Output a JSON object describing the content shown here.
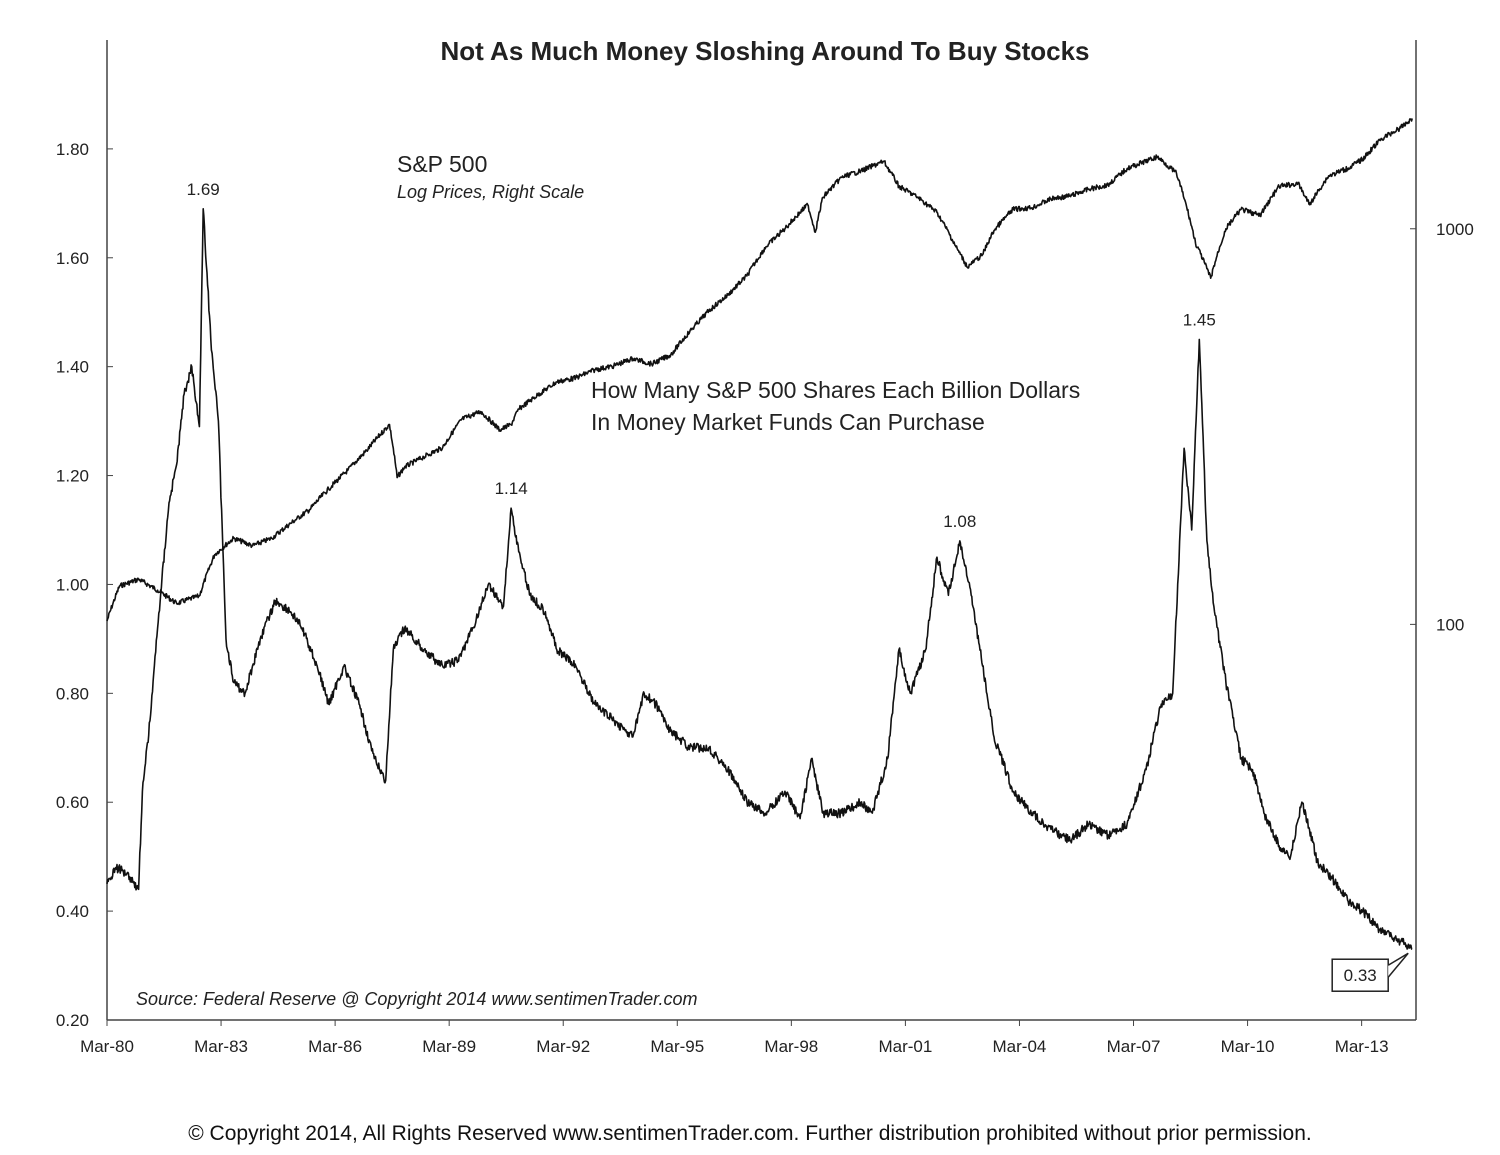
{
  "chart_data": {
    "type": "line",
    "title": "Not As Much Money Sloshing Around To Buy Stocks",
    "source_note": "Source:  Federal Reserve   @ Copyright 2014   www.sentimenTrader.com",
    "x_ticks": [
      "Mar-80",
      "Mar-83",
      "Mar-86",
      "Mar-89",
      "Mar-92",
      "Mar-95",
      "Mar-98",
      "Mar-01",
      "Mar-04",
      "Mar-07",
      "Mar-10",
      "Mar-13"
    ],
    "y_left": {
      "ylim": [
        0.2,
        2.0
      ],
      "ticks": [
        "0.20",
        "0.40",
        "0.60",
        "0.80",
        "1.00",
        "1.20",
        "1.40",
        "1.60",
        "1.80"
      ]
    },
    "y_right": {
      "scale": "log",
      "ylim": [
        10,
        3000
      ],
      "ticks": [
        "100",
        "1000"
      ]
    },
    "grid": false,
    "series": [
      {
        "name": "S&P 500",
        "subtitle": "Log Prices, Right Scale",
        "axis": "right",
        "x": [
          1980.17,
          1980.5,
          1981.0,
          1981.5,
          1982.0,
          1982.6,
          1983.0,
          1983.5,
          1984.0,
          1984.5,
          1985.0,
          1985.5,
          1986.0,
          1986.5,
          1987.0,
          1987.6,
          1987.8,
          1988.0,
          1988.5,
          1989.0,
          1989.5,
          1990.0,
          1990.5,
          1990.8,
          1991.0,
          1991.5,
          1992.0,
          1992.5,
          1993.0,
          1993.5,
          1994.0,
          1994.5,
          1995.0,
          1995.5,
          1996.0,
          1996.5,
          1997.0,
          1997.5,
          1998.0,
          1998.6,
          1998.8,
          1999.0,
          1999.5,
          2000.0,
          2000.6,
          2001.0,
          2001.5,
          2002.0,
          2002.5,
          2002.8,
          2003.2,
          2003.5,
          2004.0,
          2004.5,
          2005.0,
          2005.5,
          2006.0,
          2006.5,
          2007.0,
          2007.8,
          2008.3,
          2008.8,
          2009.2,
          2009.6,
          2010.0,
          2010.5,
          2011.0,
          2011.5,
          2011.8,
          2012.3,
          2012.8,
          2013.2,
          2013.7,
          2014.2,
          2014.5
        ],
        "values": [
          102,
          125,
          130,
          122,
          113,
          118,
          150,
          165,
          158,
          165,
          180,
          195,
          220,
          245,
          275,
          320,
          235,
          250,
          265,
          280,
          330,
          345,
          310,
          320,
          350,
          380,
          410,
          420,
          440,
          450,
          470,
          455,
          480,
          550,
          620,
          680,
          760,
          900,
          1000,
          1150,
          980,
          1200,
          1350,
          1400,
          1480,
          1280,
          1200,
          1100,
          900,
          800,
          860,
          990,
          1120,
          1130,
          1190,
          1210,
          1260,
          1290,
          1420,
          1520,
          1380,
          920,
          750,
          1000,
          1120,
          1080,
          1280,
          1300,
          1150,
          1360,
          1420,
          1500,
          1690,
          1800,
          1900
        ]
      },
      {
        "name": "How Many S&P 500 Shares Each Billion Dollars In Money Market Funds Can Purchase",
        "axis": "left",
        "x": [
          1980.17,
          1980.4,
          1980.7,
          1981.0,
          1981.1,
          1981.3,
          1981.5,
          1981.8,
          1982.0,
          1982.2,
          1982.4,
          1982.6,
          1982.7,
          1982.9,
          1983.1,
          1983.3,
          1983.5,
          1983.8,
          1984.2,
          1984.6,
          1985.0,
          1985.3,
          1985.7,
          1986.0,
          1986.4,
          1986.8,
          1987.2,
          1987.5,
          1987.7,
          1988.0,
          1988.5,
          1989.0,
          1989.4,
          1989.8,
          1990.2,
          1990.6,
          1990.8,
          1991.0,
          1991.3,
          1991.7,
          1992.0,
          1992.5,
          1993.0,
          1993.5,
          1994.0,
          1994.3,
          1994.6,
          1995.0,
          1995.5,
          1996.0,
          1996.5,
          1997.0,
          1997.5,
          1998.0,
          1998.4,
          1998.7,
          1999.0,
          1999.5,
          2000.0,
          2000.3,
          2000.7,
          2001.0,
          2001.3,
          2001.7,
          2002.0,
          2002.3,
          2002.6,
          2002.9,
          2003.2,
          2003.5,
          2004.0,
          2004.5,
          2005.0,
          2005.5,
          2006.0,
          2006.5,
          2007.0,
          2007.5,
          2007.9,
          2008.2,
          2008.5,
          2008.7,
          2008.9,
          2009.1,
          2009.3,
          2009.6,
          2010.0,
          2010.3,
          2010.6,
          2011.0,
          2011.3,
          2011.6,
          2011.8,
          2012.0,
          2012.4,
          2012.8,
          2013.2,
          2013.6,
          2014.0,
          2014.3,
          2014.5
        ],
        "values": [
          0.45,
          0.48,
          0.47,
          0.44,
          0.62,
          0.75,
          0.92,
          1.15,
          1.22,
          1.35,
          1.4,
          1.29,
          1.69,
          1.45,
          1.3,
          0.9,
          0.82,
          0.8,
          0.9,
          0.97,
          0.95,
          0.92,
          0.85,
          0.78,
          0.85,
          0.78,
          0.68,
          0.64,
          0.88,
          0.92,
          0.88,
          0.85,
          0.86,
          0.92,
          1.0,
          0.96,
          1.14,
          1.06,
          0.98,
          0.95,
          0.88,
          0.85,
          0.78,
          0.75,
          0.72,
          0.8,
          0.78,
          0.73,
          0.7,
          0.7,
          0.66,
          0.6,
          0.58,
          0.62,
          0.57,
          0.68,
          0.58,
          0.58,
          0.6,
          0.58,
          0.68,
          0.88,
          0.8,
          0.88,
          1.05,
          0.98,
          1.08,
          0.98,
          0.85,
          0.72,
          0.62,
          0.58,
          0.55,
          0.53,
          0.56,
          0.54,
          0.56,
          0.66,
          0.78,
          0.8,
          1.25,
          1.1,
          1.45,
          1.08,
          0.95,
          0.82,
          0.68,
          0.66,
          0.58,
          0.52,
          0.5,
          0.6,
          0.55,
          0.49,
          0.46,
          0.42,
          0.4,
          0.37,
          0.35,
          0.34,
          0.33
        ]
      }
    ],
    "annotations": [
      {
        "text": "1.69",
        "x": 1982.7,
        "y": 1.69
      },
      {
        "text": "1.14",
        "x": 1990.8,
        "y": 1.14
      },
      {
        "text": "1.08",
        "x": 2002.6,
        "y": 1.08
      },
      {
        "text": "1.45",
        "x": 2008.9,
        "y": 1.45
      },
      {
        "text": "0.33",
        "x": 2014.5,
        "y": 0.33,
        "boxed": true
      }
    ]
  },
  "footer": "© Copyright 2014, All Rights Reserved www.sentimenTrader.com. Further distribution prohibited without prior permission."
}
